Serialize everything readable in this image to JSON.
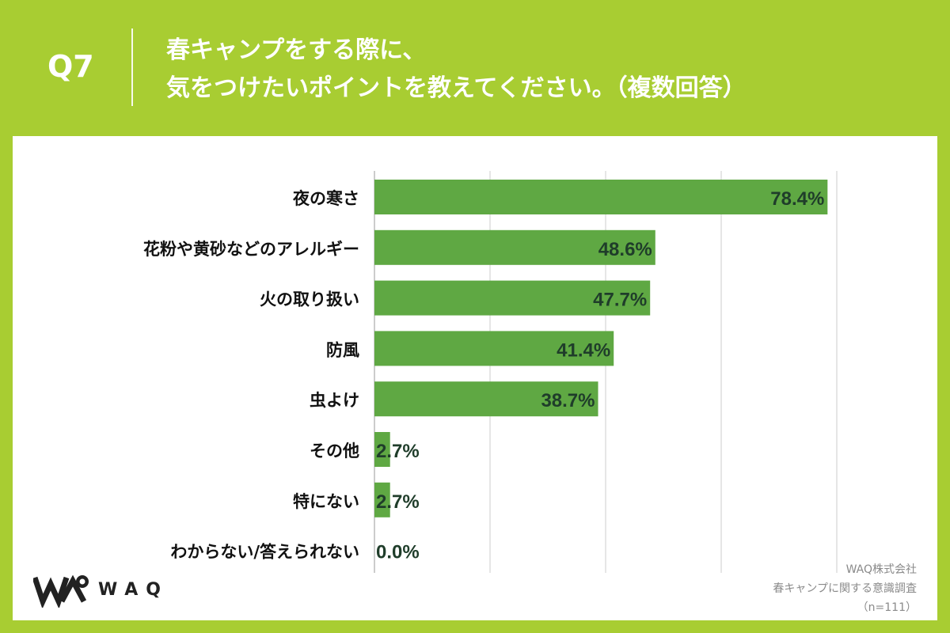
{
  "header": {
    "question_number": "Q7",
    "title_line1": "春キャンプをする際に、",
    "title_line2": "気をつけたいポイントを教えてください。（複数回答）"
  },
  "colors": {
    "background": "#a8cd32",
    "bar": "#5fa843",
    "value_text": "#1f3d2a",
    "grid": "#cccccc"
  },
  "chart_data": {
    "type": "bar",
    "orientation": "horizontal",
    "categories": [
      "夜の寒さ",
      "花粉や黄砂などのアレルギー",
      "火の取り扱い",
      "防風",
      "虫よけ",
      "その他",
      "特にない",
      "わからない/答えられない"
    ],
    "values": [
      78.4,
      48.6,
      47.7,
      41.4,
      38.7,
      2.7,
      2.7,
      0.0
    ],
    "value_labels": [
      "78.4%",
      "48.6%",
      "47.7%",
      "41.4%",
      "38.7%",
      "2.7%",
      "2.7%",
      "0.0%"
    ],
    "xlim": [
      0,
      80
    ],
    "grid": true
  },
  "logo": {
    "text": "WAQ"
  },
  "source": {
    "company": "WAQ株式会社",
    "survey": "春キャンプに関する意識調査",
    "sample": "（n=111）"
  }
}
